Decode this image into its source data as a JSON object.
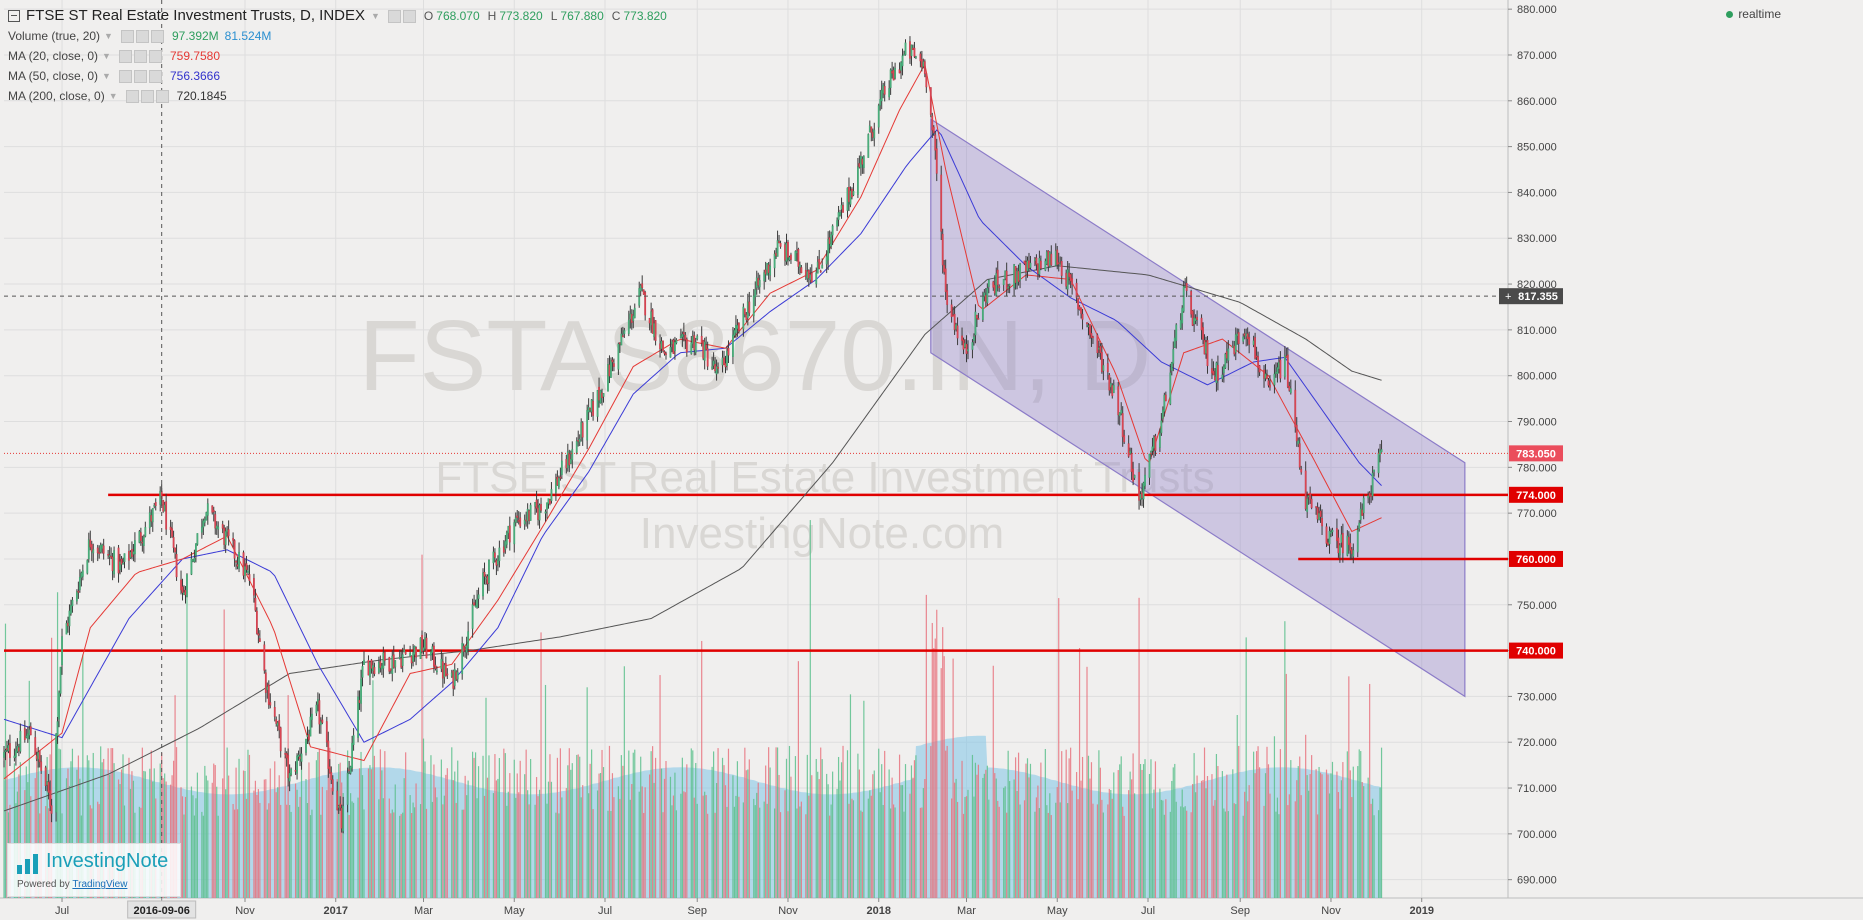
{
  "header": {
    "title": "FTSE ST Real Estate Investment Trusts, D, INDEX",
    "ohlc": [
      {
        "label": "O",
        "value": "768.070"
      },
      {
        "label": "H",
        "value": "773.820"
      },
      {
        "label": "L",
        "value": "767.880"
      },
      {
        "label": "C",
        "value": "773.820"
      }
    ],
    "realtime_label": "realtime"
  },
  "indicators": [
    {
      "name": "Volume (true, 20)",
      "values": [
        "97.392M",
        "81.524M"
      ],
      "colors": [
        "#2e9e5e",
        "#2a8fd0"
      ]
    },
    {
      "name": "MA (20, close, 0)",
      "values": [
        "759.7580"
      ],
      "colors": [
        "#e53935"
      ]
    },
    {
      "name": "MA (50, close, 0)",
      "values": [
        "756.3666"
      ],
      "colors": [
        "#3333cc"
      ]
    },
    {
      "name": "MA (200, close, 0)",
      "values": [
        "720.1845"
      ],
      "colors": [
        "#333333"
      ]
    }
  ],
  "watermark": {
    "symbol": "FSTAS8670.IN, D",
    "name": "FTSE ST Real Estate Investment Trusts",
    "site": "InvestingNote.com"
  },
  "logo": {
    "brand": "InvestingNote",
    "powered_prefix": "Powered by ",
    "powered_link": "TradingView"
  },
  "colors": {
    "up": "#53b987",
    "down": "#eb4d5c",
    "ma20": "#e53935",
    "ma50": "#3b3bd6",
    "ma200": "#555555",
    "support": "#e00000",
    "channel": "#8c7cc8"
  },
  "chart_data": {
    "type": "candlestick",
    "title": "FTSE ST Real Estate Investment Trusts, D, INDEX",
    "ylim": [
      686,
      882
    ],
    "y_ticks": [
      "880.000",
      "870.000",
      "860.000",
      "850.000",
      "840.000",
      "830.000",
      "820.000",
      "810.000",
      "800.000",
      "790.000",
      "780.000",
      "770.000",
      "760.000",
      "750.000",
      "740.000",
      "730.000",
      "720.000",
      "710.000",
      "700.000",
      "690.000"
    ],
    "x_ticks": [
      "Jul",
      "2016-09-06",
      "Nov",
      "2017",
      "Mar",
      "May",
      "Jul",
      "Sep",
      "Nov",
      "2018",
      "Mar",
      "May",
      "Jul",
      "Sep",
      "Nov",
      "2019"
    ],
    "x_range": [
      "2016-05-23",
      "2019-02-28"
    ],
    "price_path": [
      [
        "2016-05-23",
        717
      ],
      [
        "2016-06-10",
        722
      ],
      [
        "2016-06-24",
        706
      ],
      [
        "2016-07-01",
        742
      ],
      [
        "2016-07-20",
        764
      ],
      [
        "2016-08-10",
        758
      ],
      [
        "2016-09-06",
        773
      ],
      [
        "2016-09-20",
        752
      ],
      [
        "2016-10-05",
        771
      ],
      [
        "2016-10-20",
        764
      ],
      [
        "2016-11-05",
        755
      ],
      [
        "2016-11-15",
        733
      ],
      [
        "2016-12-01",
        712
      ],
      [
        "2016-12-20",
        727
      ],
      [
        "2017-01-05",
        702
      ],
      [
        "2017-01-20",
        737
      ],
      [
        "2017-02-10",
        738
      ],
      [
        "2017-03-01",
        741
      ],
      [
        "2017-03-20",
        733
      ],
      [
        "2017-04-10",
        755
      ],
      [
        "2017-05-01",
        768
      ],
      [
        "2017-05-20",
        771
      ],
      [
        "2017-06-10",
        784
      ],
      [
        "2017-06-30",
        798
      ],
      [
        "2017-07-25",
        818
      ],
      [
        "2017-08-10",
        805
      ],
      [
        "2017-09-01",
        808
      ],
      [
        "2017-09-15",
        800
      ],
      [
        "2017-10-05",
        815
      ],
      [
        "2017-10-25",
        828
      ],
      [
        "2017-11-20",
        822
      ],
      [
        "2017-12-15",
        842
      ],
      [
        "2018-01-05",
        862
      ],
      [
        "2018-01-20",
        871
      ],
      [
        "2018-02-01",
        868
      ],
      [
        "2018-02-08",
        848
      ],
      [
        "2018-02-15",
        818
      ],
      [
        "2018-02-28",
        805
      ],
      [
        "2018-03-15",
        819
      ],
      [
        "2018-04-10",
        823
      ],
      [
        "2018-05-01",
        826
      ],
      [
        "2018-05-20",
        812
      ],
      [
        "2018-06-10",
        795
      ],
      [
        "2018-06-25",
        773
      ],
      [
        "2018-07-10",
        790
      ],
      [
        "2018-07-25",
        818
      ],
      [
        "2018-08-15",
        800
      ],
      [
        "2018-09-05",
        811
      ],
      [
        "2018-09-20",
        796
      ],
      [
        "2018-10-01",
        804
      ],
      [
        "2018-10-15",
        773
      ],
      [
        "2018-11-01",
        764
      ],
      [
        "2018-11-15",
        763
      ],
      [
        "2018-12-05",
        783
      ]
    ],
    "ma20_path": [
      [
        "2016-05-23",
        712
      ],
      [
        "2016-07-01",
        722
      ],
      [
        "2016-07-20",
        745
      ],
      [
        "2016-08-20",
        757
      ],
      [
        "2016-09-20",
        760
      ],
      [
        "2016-10-20",
        765
      ],
      [
        "2016-11-20",
        745
      ],
      [
        "2016-12-15",
        719
      ],
      [
        "2017-01-20",
        716
      ],
      [
        "2017-02-20",
        735
      ],
      [
        "2017-03-20",
        737
      ],
      [
        "2017-04-20",
        751
      ],
      [
        "2017-05-20",
        767
      ],
      [
        "2017-06-20",
        784
      ],
      [
        "2017-07-20",
        802
      ],
      [
        "2017-08-20",
        808
      ],
      [
        "2017-09-20",
        806
      ],
      [
        "2017-10-20",
        818
      ],
      [
        "2017-11-20",
        823
      ],
      [
        "2017-12-20",
        839
      ],
      [
        "2018-01-15",
        858
      ],
      [
        "2018-02-01",
        868
      ],
      [
        "2018-02-15",
        845
      ],
      [
        "2018-03-10",
        814
      ],
      [
        "2018-04-10",
        822
      ],
      [
        "2018-05-10",
        821
      ],
      [
        "2018-06-10",
        800
      ],
      [
        "2018-07-01",
        780
      ],
      [
        "2018-07-25",
        805
      ],
      [
        "2018-08-20",
        808
      ],
      [
        "2018-09-20",
        800
      ],
      [
        "2018-10-20",
        782
      ],
      [
        "2018-11-15",
        766
      ],
      [
        "2018-12-05",
        769
      ]
    ],
    "ma50_path": [
      [
        "2016-05-23",
        725
      ],
      [
        "2016-07-01",
        721
      ],
      [
        "2016-08-15",
        747
      ],
      [
        "2016-09-20",
        760
      ],
      [
        "2016-10-20",
        762
      ],
      [
        "2016-11-20",
        757
      ],
      [
        "2016-12-20",
        737
      ],
      [
        "2017-01-20",
        720
      ],
      [
        "2017-02-20",
        725
      ],
      [
        "2017-03-20",
        733
      ],
      [
        "2017-04-20",
        745
      ],
      [
        "2017-05-20",
        765
      ],
      [
        "2017-06-20",
        779
      ],
      [
        "2017-07-20",
        796
      ],
      [
        "2017-08-20",
        805
      ],
      [
        "2017-09-20",
        806
      ],
      [
        "2017-10-20",
        814
      ],
      [
        "2017-11-20",
        821
      ],
      [
        "2017-12-20",
        831
      ],
      [
        "2018-01-20",
        846
      ],
      [
        "2018-02-10",
        854
      ],
      [
        "2018-03-10",
        834
      ],
      [
        "2018-04-10",
        824
      ],
      [
        "2018-05-10",
        817
      ],
      [
        "2018-06-10",
        812
      ],
      [
        "2018-07-10",
        803
      ],
      [
        "2018-08-10",
        798
      ],
      [
        "2018-09-10",
        803
      ],
      [
        "2018-10-01",
        804
      ],
      [
        "2018-10-25",
        793
      ],
      [
        "2018-11-20",
        781
      ],
      [
        "2018-12-05",
        776
      ]
    ],
    "ma200_path": [
      [
        "2016-05-23",
        705
      ],
      [
        "2016-08-01",
        713
      ],
      [
        "2016-10-01",
        723
      ],
      [
        "2016-12-01",
        735
      ],
      [
        "2017-02-01",
        738
      ],
      [
        "2017-04-01",
        740
      ],
      [
        "2017-06-01",
        743
      ],
      [
        "2017-08-01",
        747
      ],
      [
        "2017-10-01",
        758
      ],
      [
        "2017-12-01",
        781
      ],
      [
        "2018-02-01",
        809
      ],
      [
        "2018-03-15",
        821
      ],
      [
        "2018-05-01",
        824
      ],
      [
        "2018-07-01",
        822
      ],
      [
        "2018-09-01",
        816
      ],
      [
        "2018-10-15",
        808
      ],
      [
        "2018-11-15",
        801
      ],
      [
        "2018-12-05",
        799
      ]
    ],
    "volume_range": [
      0,
      150
    ],
    "volume_level": 52,
    "support_lines": [
      {
        "value": 774.0,
        "label": "774.000",
        "from": "2016-08-01",
        "to": "2019-02-28"
      },
      {
        "value": 760.0,
        "label": "760.000",
        "from": "2018-10-10",
        "to": "2019-02-28"
      },
      {
        "value": 740.0,
        "label": "740.000",
        "from": "2016-05-23",
        "to": "2019-02-28"
      }
    ],
    "price_labels": [
      {
        "value": 817.355,
        "label": "817.355"
      },
      {
        "value": 783.05,
        "label": "783.050"
      }
    ],
    "crosshair_date": "2016-09-06",
    "channel": {
      "upper": [
        [
          "2018-02-05",
          856
        ],
        [
          "2019-01-30",
          781
        ]
      ],
      "lower": [
        [
          "2018-02-05",
          805
        ],
        [
          "2019-01-30",
          730
        ]
      ]
    },
    "last_date": "2018-12-05"
  }
}
